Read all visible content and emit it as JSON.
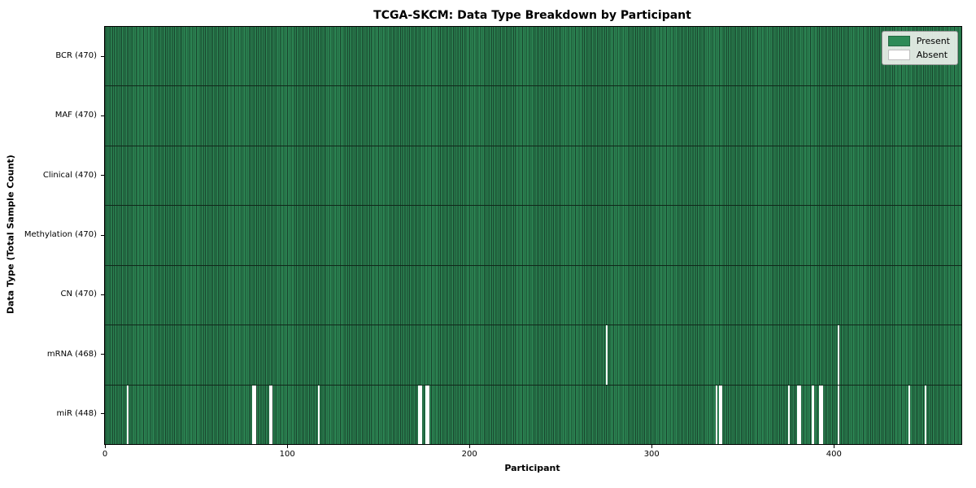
{
  "chart_data": {
    "type": "heatmap",
    "title": "TCGA-SKCM: Data Type Breakdown by Participant",
    "xlabel": "Participant",
    "ylabel": "Data Type (Total Sample Count)",
    "n_participants": 470,
    "x_ticks": [
      0,
      100,
      200,
      300,
      400
    ],
    "legend": [
      {
        "label": "Present",
        "color": "#2e8b57"
      },
      {
        "label": "Absent",
        "color": "#ffffff"
      }
    ],
    "colors": {
      "present": "#2e8b57",
      "absent": "#ffffff",
      "bar_edge": "#17402a",
      "row_separator": "#10281a"
    },
    "rows": [
      {
        "label": "BCR (470)",
        "data_type": "BCR",
        "present_count": 470,
        "absent_participants": []
      },
      {
        "label": "MAF (470)",
        "data_type": "MAF",
        "present_count": 470,
        "absent_participants": []
      },
      {
        "label": "Clinical (470)",
        "data_type": "Clinical",
        "present_count": 470,
        "absent_participants": []
      },
      {
        "label": "Methylation (470)",
        "data_type": "Methylation",
        "present_count": 470,
        "absent_participants": []
      },
      {
        "label": "CN (470)",
        "data_type": "CN",
        "present_count": 470,
        "absent_participants": []
      },
      {
        "label": "mRNA (468)",
        "data_type": "mRNA",
        "present_count": 468,
        "absent_participants": [
          275,
          402
        ]
      },
      {
        "label": "miR (448)",
        "data_type": "miR",
        "present_count": 448,
        "absent_participants": [
          12,
          81,
          82,
          90,
          91,
          117,
          172,
          173,
          176,
          177,
          335,
          337,
          338,
          375,
          380,
          381,
          388,
          392,
          393,
          402,
          441,
          450
        ]
      }
    ]
  }
}
